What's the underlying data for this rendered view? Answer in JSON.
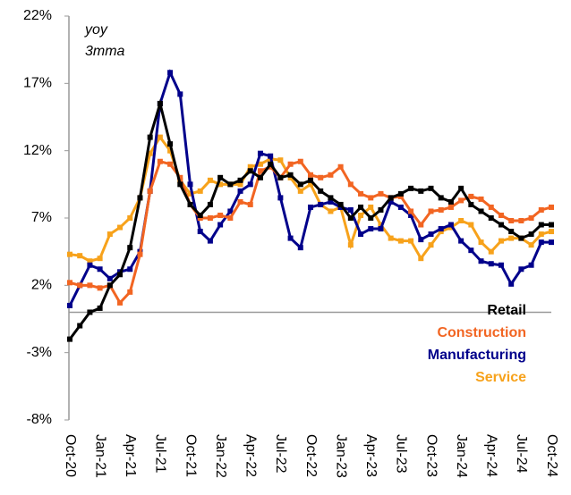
{
  "chart_data": {
    "type": "line",
    "annotations": [
      "yoy",
      "3mma"
    ],
    "categories": [
      "Oct-20",
      null,
      null,
      "Jan-21",
      null,
      null,
      "Apr-21",
      null,
      null,
      "Jul-21",
      null,
      null,
      "Oct-21",
      null,
      null,
      "Jan-22",
      null,
      null,
      "Apr-22",
      null,
      null,
      "Jul-22",
      null,
      null,
      "Oct-22",
      null,
      null,
      "Jan-23",
      null,
      null,
      "Apr-23",
      null,
      null,
      "Jul-23",
      null,
      null,
      "Oct-23",
      null,
      null,
      "Jan-24",
      null,
      null,
      "Apr-24",
      null,
      null,
      "Jul-24",
      null,
      null,
      "Oct-24"
    ],
    "series": [
      {
        "name": "Retail",
        "color": "#000000",
        "values": [
          -2,
          -1.0,
          0.0,
          0.3,
          2.0,
          2.8,
          4.8,
          8.5,
          13.0,
          15.5,
          12.5,
          9.5,
          8.0,
          7.2,
          8.0,
          10.0,
          9.5,
          9.8,
          10.5,
          10.0,
          11.0,
          10.0,
          10.2,
          9.5,
          9.8,
          9.0,
          8.5,
          8.0,
          7.0,
          7.8,
          7.0,
          7.6,
          8.5,
          8.8,
          9.2,
          9.0,
          9.2,
          8.5,
          8.2,
          9.2,
          8.0,
          7.5,
          7.0,
          6.5,
          6.0,
          5.5,
          5.8,
          6.5,
          6.5
        ]
      },
      {
        "name": "Construction",
        "color": "#f26522",
        "values": [
          2.2,
          2.0,
          2.0,
          1.8,
          2.0,
          0.7,
          1.5,
          4.3,
          9.0,
          11.2,
          11.0,
          10.0,
          8.0,
          7.0,
          7.0,
          7.2,
          7.0,
          8.2,
          8.0,
          10.5,
          10.8,
          10.0,
          11.0,
          11.2,
          10.2,
          10.0,
          10.2,
          10.8,
          9.5,
          8.8,
          8.5,
          8.8,
          8.5,
          8.6,
          7.5,
          6.5,
          7.5,
          7.6,
          7.8,
          8.3,
          8.6,
          8.4,
          7.8,
          7.2,
          6.8,
          6.8,
          7.0,
          7.6,
          7.8
        ]
      },
      {
        "name": "Manufacturing",
        "color": "#00008b",
        "values": [
          0.5,
          2.0,
          3.5,
          3.2,
          2.5,
          3.0,
          3.2,
          4.5,
          9.0,
          15.5,
          17.8,
          16.2,
          9.5,
          6.0,
          5.3,
          6.5,
          7.5,
          9.0,
          9.5,
          11.8,
          11.6,
          8.5,
          5.5,
          4.8,
          7.8,
          8.0,
          8.2,
          7.8,
          7.6,
          5.8,
          6.2,
          6.2,
          8.2,
          7.8,
          7.2,
          5.4,
          5.8,
          6.2,
          6.5,
          5.3,
          4.6,
          3.8,
          3.6,
          3.5,
          2.1,
          3.2,
          3.5,
          5.2,
          5.2
        ]
      },
      {
        "name": "Service",
        "color": "#f7a21b",
        "values": [
          4.3,
          4.2,
          3.8,
          4.0,
          5.8,
          6.3,
          7.0,
          8.5,
          11.8,
          13.0,
          12.0,
          9.8,
          8.8,
          9.0,
          9.8,
          9.5,
          9.5,
          9.5,
          10.8,
          11.0,
          11.4,
          11.3,
          10.0,
          9.0,
          9.5,
          8.0,
          7.5,
          7.8,
          5.0,
          7.2,
          7.8,
          6.5,
          5.5,
          5.3,
          5.3,
          4.0,
          5.0,
          6.0,
          6.3,
          6.8,
          6.5,
          5.2,
          4.5,
          5.3,
          5.5,
          5.5,
          5.0,
          5.8,
          6.0
        ]
      }
    ],
    "ylim": [
      -8,
      22
    ],
    "yticks": [
      {
        "value": -8,
        "label": "-8%"
      },
      {
        "value": -3,
        "label": "-3%"
      },
      {
        "value": 2,
        "label": "2%"
      },
      {
        "value": 7,
        "label": "7%"
      },
      {
        "value": 12,
        "label": "12%"
      },
      {
        "value": 17,
        "label": "17%"
      },
      {
        "value": 22,
        "label": "22%"
      }
    ],
    "legend": "lower right",
    "grid": false
  }
}
